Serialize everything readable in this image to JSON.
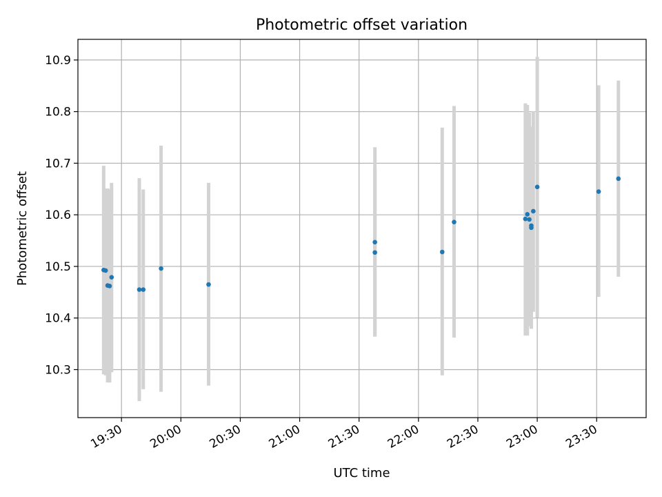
{
  "chart_data": {
    "type": "scatter",
    "title": "Photometric offset variation",
    "xlabel": "UTC time",
    "ylabel": "Photometric offset",
    "x_ticks": [
      "19:30",
      "20:00",
      "20:30",
      "21:00",
      "21:30",
      "22:00",
      "22:30",
      "23:00",
      "23:30"
    ],
    "y_ticks": [
      "10.3",
      "10.4",
      "10.5",
      "10.6",
      "10.7",
      "10.8",
      "10.9"
    ],
    "xlim": [
      "19:08",
      "23:55"
    ],
    "ylim": [
      10.207,
      10.94
    ],
    "grid": true,
    "legend": "none",
    "colors": {
      "marker": "#1f77b4",
      "errorbar": "#d3d3d3",
      "grid": "#b0b0b0"
    },
    "series": [
      {
        "points": [
          {
            "x": "19:21",
            "y": 10.493,
            "ylow": 10.291,
            "yhigh": 10.695
          },
          {
            "x": "19:22",
            "y": 10.492,
            "ylow": 10.289,
            "yhigh": 10.651
          },
          {
            "x": "19:23",
            "y": 10.463,
            "ylow": 10.275,
            "yhigh": 10.651
          },
          {
            "x": "19:24",
            "y": 10.462,
            "ylow": 10.275,
            "yhigh": 10.649
          },
          {
            "x": "19:25",
            "y": 10.479,
            "ylow": 10.295,
            "yhigh": 10.662
          },
          {
            "x": "19:39",
            "y": 10.455,
            "ylow": 10.239,
            "yhigh": 10.671
          },
          {
            "x": "19:41",
            "y": 10.455,
            "ylow": 10.262,
            "yhigh": 10.649
          },
          {
            "x": "19:50",
            "y": 10.496,
            "ylow": 10.257,
            "yhigh": 10.734
          },
          {
            "x": "20:14",
            "y": 10.465,
            "ylow": 10.269,
            "yhigh": 10.662
          },
          {
            "x": "21:38",
            "y": 10.527,
            "ylow": 10.364,
            "yhigh": 10.691
          },
          {
            "x": "21:38",
            "y": 10.547,
            "ylow": 10.364,
            "yhigh": 10.731
          },
          {
            "x": "22:12",
            "y": 10.528,
            "ylow": 10.289,
            "yhigh": 10.769
          },
          {
            "x": "22:18",
            "y": 10.586,
            "ylow": 10.362,
            "yhigh": 10.811
          },
          {
            "x": "22:54",
            "y": 10.592,
            "ylow": 10.366,
            "yhigh": 10.816
          },
          {
            "x": "22:55",
            "y": 10.601,
            "ylow": 10.366,
            "yhigh": 10.813
          },
          {
            "x": "22:56",
            "y": 10.591,
            "ylow": 10.384,
            "yhigh": 10.798
          },
          {
            "x": "22:57",
            "y": 10.575,
            "ylow": 10.379,
            "yhigh": 10.771
          },
          {
            "x": "22:57",
            "y": 10.579,
            "ylow": 10.388,
            "yhigh": 10.769
          },
          {
            "x": "22:58",
            "y": 10.607,
            "ylow": 10.412,
            "yhigh": 10.801
          },
          {
            "x": "23:00",
            "y": 10.654,
            "ylow": 10.401,
            "yhigh": 10.906
          },
          {
            "x": "23:31",
            "y": 10.645,
            "ylow": 10.441,
            "yhigh": 10.851
          },
          {
            "x": "23:41",
            "y": 10.67,
            "ylow": 10.48,
            "yhigh": 10.86
          }
        ]
      }
    ]
  }
}
